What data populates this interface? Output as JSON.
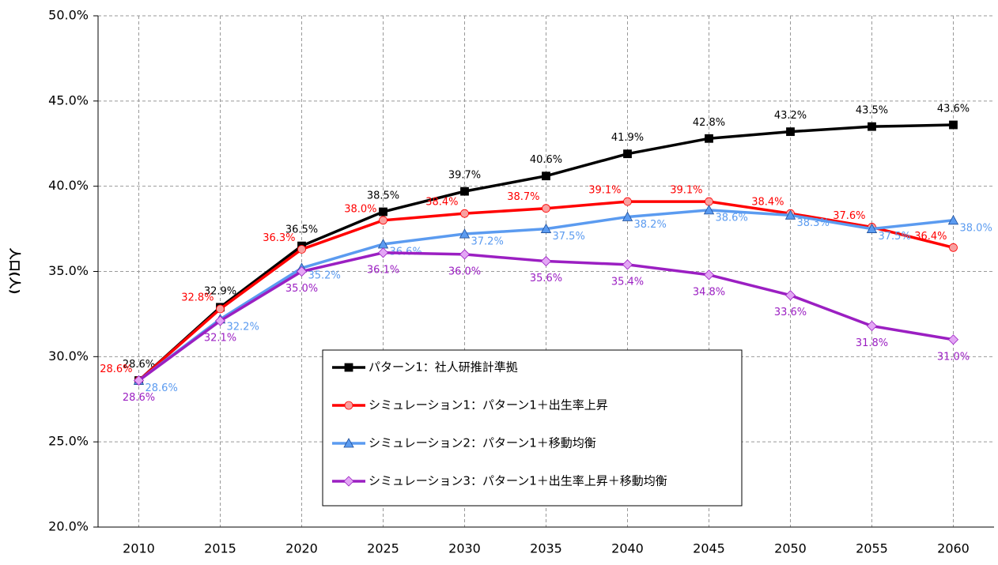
{
  "chart_data": {
    "type": "line",
    "y_label": "人口(人)",
    "categories": [
      "2010",
      "2015",
      "2020",
      "2025",
      "2030",
      "2035",
      "2040",
      "2045",
      "2050",
      "2055",
      "2060"
    ],
    "ylim": [
      20,
      50
    ],
    "yticks": [
      {
        "value": 20,
        "label": "20.0%"
      },
      {
        "value": 25,
        "label": "25.0%"
      },
      {
        "value": 30,
        "label": "30.0%"
      },
      {
        "value": 35,
        "label": "35.0%"
      },
      {
        "value": 40,
        "label": "40.0%"
      },
      {
        "value": 45,
        "label": "45.0%"
      },
      {
        "value": 50,
        "label": "50.0%"
      }
    ],
    "grid": true,
    "series": [
      {
        "name": "パターン1：社人研推計準拠",
        "color": "#000000",
        "marker": "square",
        "values": [
          28.6,
          32.9,
          36.5,
          38.5,
          39.7,
          40.6,
          41.9,
          42.8,
          43.2,
          43.5,
          43.6
        ],
        "value_labels": [
          "28.6%",
          "32.9%",
          "36.5%",
          "38.5%",
          "39.7%",
          "40.6%",
          "41.9%",
          "42.8%",
          "43.2%",
          "43.5%",
          "43.6%"
        ]
      },
      {
        "name": "シミュレーション1：パターン1＋出生率上昇",
        "color": "#ff0000",
        "marker": "circle",
        "values": [
          28.6,
          32.8,
          36.3,
          38.0,
          38.4,
          38.7,
          39.1,
          39.1,
          38.4,
          37.6,
          36.4
        ],
        "value_labels": [
          "28.6%",
          "32.8%",
          "36.3%",
          "38.0%",
          "38.4%",
          "38.7%",
          "39.1%",
          "39.1%",
          "38.4%",
          "37.6%",
          "36.4%"
        ]
      },
      {
        "name": "シミュレーション2：パターン1＋移動均衡",
        "color": "#5b9bf0",
        "marker": "triangle",
        "values": [
          28.6,
          32.2,
          35.2,
          36.6,
          37.2,
          37.5,
          38.2,
          38.6,
          38.3,
          37.5,
          38.0
        ],
        "value_labels": [
          "28.6%",
          "32.2%",
          "35.2%",
          "36.6%",
          "37.2%",
          "37.5%",
          "38.2%",
          "38.6%",
          "38.3%",
          "37.5%",
          "38.0%"
        ]
      },
      {
        "name": "シミュレーション3：パターン1＋出生率上昇＋移動均衡",
        "color": "#9b1fc2",
        "marker": "diamond",
        "values": [
          28.6,
          32.1,
          35.0,
          36.1,
          36.0,
          35.6,
          35.4,
          34.8,
          33.6,
          31.8,
          31.0
        ],
        "value_labels": [
          "28.6%",
          "32.1%",
          "35.0%",
          "36.1%",
          "36.0%",
          "35.6%",
          "35.4%",
          "34.8%",
          "33.6%",
          "31.8%",
          "31.0%"
        ]
      }
    ]
  }
}
